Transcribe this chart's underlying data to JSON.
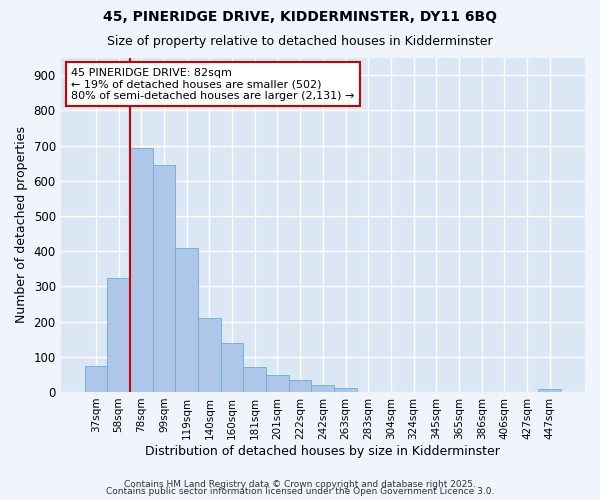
{
  "title1": "45, PINERIDGE DRIVE, KIDDERMINSTER, DY11 6BQ",
  "title2": "Size of property relative to detached houses in Kidderminster",
  "xlabel": "Distribution of detached houses by size in Kidderminster",
  "ylabel": "Number of detached properties",
  "categories": [
    "37sqm",
    "58sqm",
    "78sqm",
    "99sqm",
    "119sqm",
    "140sqm",
    "160sqm",
    "181sqm",
    "201sqm",
    "222sqm",
    "242sqm",
    "263sqm",
    "283sqm",
    "304sqm",
    "324sqm",
    "345sqm",
    "365sqm",
    "386sqm",
    "406sqm",
    "427sqm",
    "447sqm"
  ],
  "values": [
    75,
    323,
    693,
    645,
    410,
    210,
    138,
    70,
    47,
    35,
    20,
    12,
    0,
    0,
    0,
    0,
    0,
    0,
    0,
    0,
    8
  ],
  "bar_color": "#aec6e8",
  "bar_edge_color": "#6aaed6",
  "background_color": "#e8eef8",
  "plot_bg_color": "#dce7f5",
  "grid_color": "#ffffff",
  "annotation_box_color": "#cc0000",
  "vline_color": "#cc0000",
  "vline_x_index": 2,
  "annotation_title": "45 PINERIDGE DRIVE: 82sqm",
  "annotation_line2": "← 19% of detached houses are smaller (502)",
  "annotation_line3": "80% of semi-detached houses are larger (2,131) →",
  "ylim": [
    0,
    950
  ],
  "yticks": [
    0,
    100,
    200,
    300,
    400,
    500,
    600,
    700,
    800,
    900
  ],
  "footnote1": "Contains HM Land Registry data © Crown copyright and database right 2025.",
  "footnote2": "Contains public sector information licensed under the Open Government Licence 3.0."
}
